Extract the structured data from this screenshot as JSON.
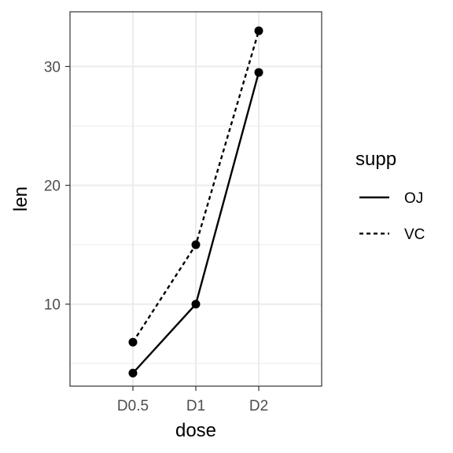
{
  "chart_data": {
    "type": "line",
    "xlabel": "dose",
    "ylabel": "len",
    "categories": [
      "D0.5",
      "D1",
      "D2"
    ],
    "yticks": [
      10,
      20,
      30
    ],
    "ylim": [
      3.1,
      34.6
    ],
    "grid": true,
    "legend": {
      "title": "supp",
      "placement": "right"
    },
    "series": [
      {
        "name": "OJ",
        "values": [
          4.2,
          10.0,
          29.5
        ],
        "linestyle": "solid",
        "color": "#000000"
      },
      {
        "name": "VC",
        "values": [
          6.8,
          15.0,
          33.0
        ],
        "linestyle": "dashed",
        "color": "#000000"
      }
    ]
  }
}
